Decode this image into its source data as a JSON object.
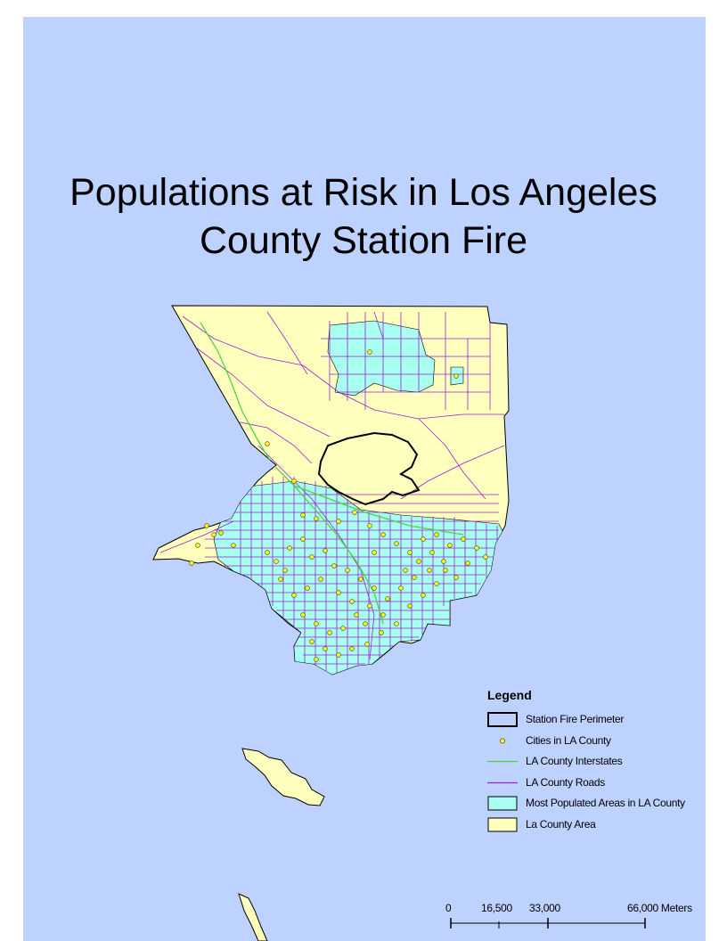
{
  "map": {
    "title_line_1": "Populations at Risk in Los Angeles",
    "title_line_2": "County Station Fire",
    "colors": {
      "ocean": "#bed2ff",
      "county_area": "#ffffbe",
      "populated_areas": "#a8fff0",
      "roads": "#a020d8",
      "interstates": "#4cd640",
      "fire_perimeter": "#000000",
      "cities": "#ffff00"
    }
  },
  "legend": {
    "title": "Legend",
    "items": [
      {
        "label": "Station Fire Perimeter",
        "symbol": "outline-box"
      },
      {
        "label": "Cities in LA County",
        "symbol": "point-marker"
      },
      {
        "label": "LA County Interstates",
        "symbol": "green-line"
      },
      {
        "label": "LA County Roads",
        "symbol": "purple-line"
      },
      {
        "label": "Most Populated Areas in LA County",
        "symbol": "cyan-fill"
      },
      {
        "label": "La County Area",
        "symbol": "yellow-fill"
      }
    ]
  },
  "scale_bar": {
    "labels": [
      "0",
      "16,500",
      "33,000",
      "66,000 Meters"
    ],
    "values": [
      0,
      16500,
      33000,
      66000
    ],
    "units": "Meters"
  }
}
